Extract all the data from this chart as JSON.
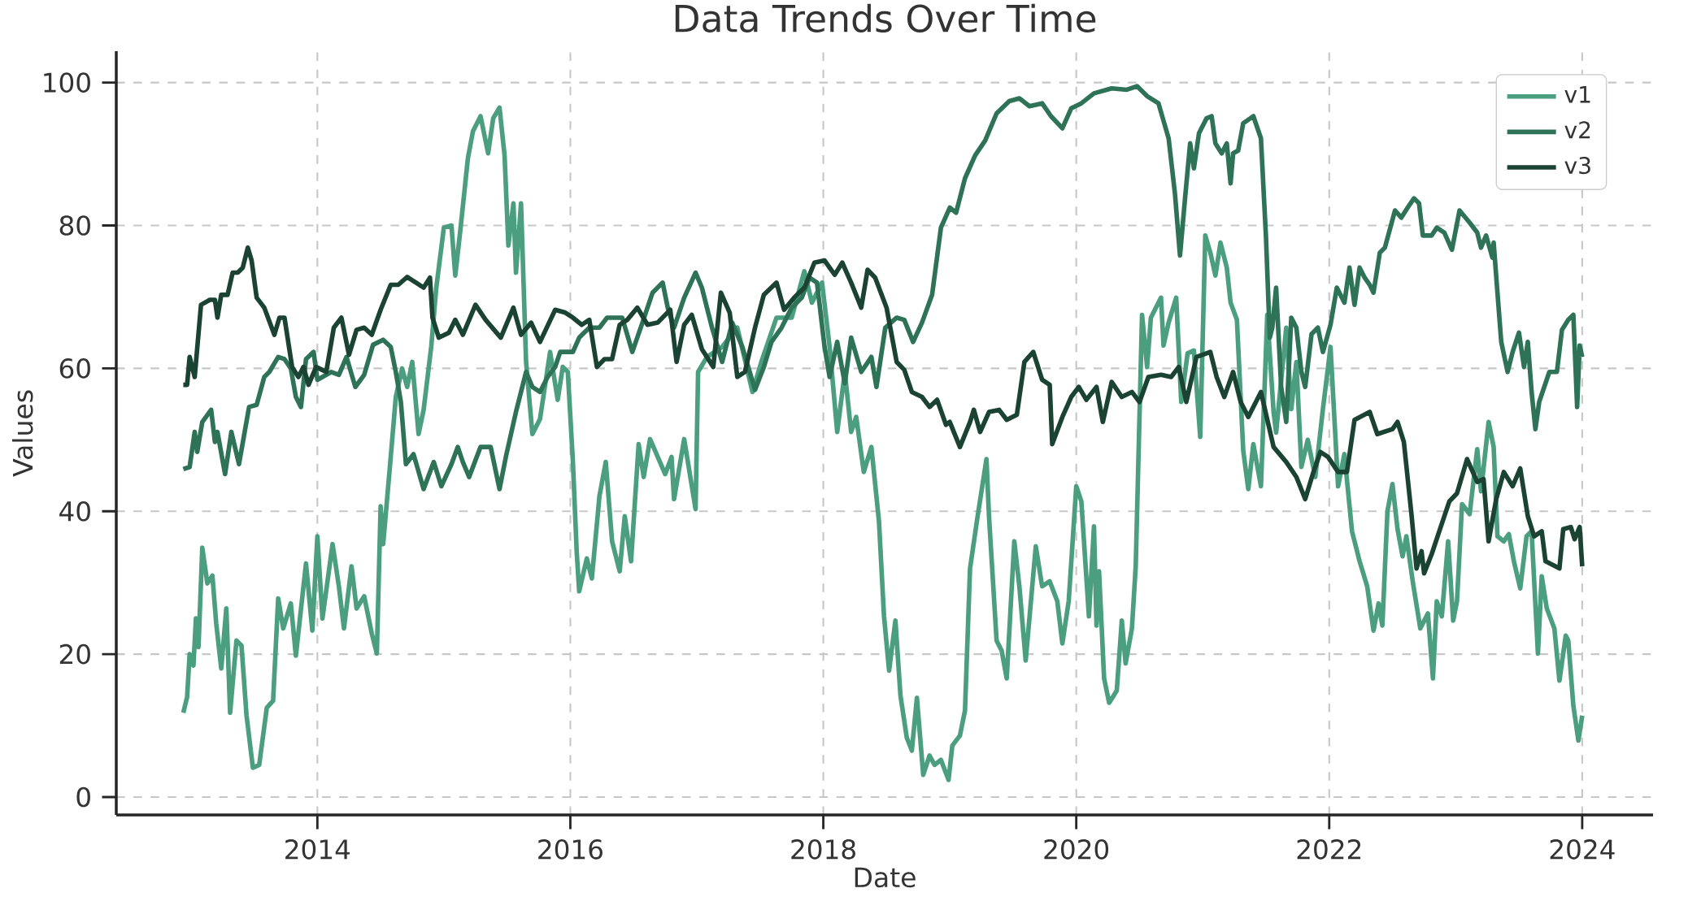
{
  "chart_data": {
    "type": "line",
    "title": "Data Trends Over Time",
    "xlabel": "Date",
    "ylabel": "Values",
    "xlim": [
      2012.41,
      2024.56
    ],
    "ylim": [
      -2.5,
      104.4
    ],
    "xticks": [
      2014,
      2016,
      2018,
      2020,
      2022,
      2024
    ],
    "yticks": [
      0,
      20,
      40,
      60,
      80,
      100
    ],
    "grid": true,
    "legend": "top right",
    "series": [
      {
        "name": "v1",
        "color": "#4c9e80",
        "x": [
          2012.94,
          2012.97,
          2012.99,
          2013.02,
          2013.04,
          2013.06,
          2013.09,
          2013.13,
          2013.17,
          2013.2,
          2013.24,
          2013.28,
          2013.31,
          2013.36,
          2013.4,
          2013.44,
          2013.49,
          2013.54,
          2013.6,
          2013.65,
          2013.69,
          2013.73,
          2013.79,
          2013.83,
          2013.91,
          2013.96,
          2014.0,
          2014.04,
          2014.12,
          2014.17,
          2014.21,
          2014.27,
          2014.31,
          2014.37,
          2014.43,
          2014.47,
          2014.5,
          2014.52,
          2014.58,
          2014.62,
          2014.67,
          2014.71,
          2014.75,
          2014.8,
          2014.84,
          2014.9,
          2014.94,
          2015.0,
          2015.06,
          2015.09,
          2015.13,
          2015.19,
          2015.23,
          2015.29,
          2015.35,
          2015.39,
          2015.44,
          2015.48,
          2015.51,
          2015.55,
          2015.57,
          2015.61,
          2015.65,
          2015.7,
          2015.76,
          2015.84,
          2015.9,
          2015.94,
          2015.98,
          2016.02,
          2016.05,
          2016.07,
          2016.13,
          2016.17,
          2016.23,
          2016.28,
          2016.33,
          2016.39,
          2016.43,
          2016.48,
          2016.54,
          2016.58,
          2016.63,
          2016.75,
          2016.8,
          2016.82,
          2016.9,
          2016.99,
          2017.01,
          2017.08,
          2017.2,
          2017.32,
          2017.44,
          2017.51,
          2017.63,
          2017.75,
          2017.85,
          2017.91,
          2017.99,
          2018.05,
          2018.11,
          2018.17,
          2018.22,
          2018.26,
          2018.32,
          2018.38,
          2018.44,
          2018.48,
          2018.52,
          2018.57,
          2018.61,
          2018.66,
          2018.7,
          2018.74,
          2018.79,
          2018.84,
          2018.88,
          2018.93,
          2018.99,
          2019.02,
          2019.08,
          2019.12,
          2019.16,
          2019.22,
          2019.29,
          2019.31,
          2019.37,
          2019.41,
          2019.45,
          2019.51,
          2019.55,
          2019.6,
          2019.68,
          2019.73,
          2019.79,
          2019.85,
          2019.89,
          2019.94,
          2020.0,
          2020.04,
          2020.1,
          2020.14,
          2020.16,
          2020.18,
          2020.22,
          2020.26,
          2020.32,
          2020.36,
          2020.39,
          2020.44,
          2020.47,
          2020.52,
          2020.56,
          2020.59,
          2020.67,
          2020.69,
          2020.73,
          2020.79,
          2020.83,
          2020.88,
          2020.93,
          2020.98,
          2021.02,
          2021.06,
          2021.1,
          2021.14,
          2021.19,
          2021.22,
          2021.27,
          2021.32,
          2021.36,
          2021.4,
          2021.46,
          2021.51,
          2021.56,
          2021.58,
          2021.66,
          2021.7,
          2021.74,
          2021.78,
          2021.83,
          2021.89,
          2021.95,
          2022.01,
          2022.07,
          2022.12,
          2022.18,
          2022.24,
          2022.3,
          2022.35,
          2022.39,
          2022.42,
          2022.46,
          2022.5,
          2022.54,
          2022.58,
          2022.61,
          2022.66,
          2022.72,
          2022.78,
          2022.82,
          2022.85,
          2022.89,
          2022.94,
          2022.98,
          2023.01,
          2023.05,
          2023.11,
          2023.17,
          2023.2,
          2023.26,
          2023.3,
          2023.33,
          2023.38,
          2023.42,
          2023.46,
          2023.51,
          2023.56,
          2023.6,
          2023.65,
          2023.68,
          2023.72,
          2023.78,
          2023.82,
          2023.87,
          2023.89,
          2023.93,
          2023.97,
          2024.0
        ],
        "values": [
          11.8,
          14,
          20,
          18.4,
          25,
          21,
          34.9,
          29.9,
          31,
          24.3,
          18,
          26.4,
          11.8,
          21.9,
          21.2,
          11.4,
          4.1,
          4.5,
          12.5,
          13.5,
          27.8,
          23.6,
          27.1,
          19.8,
          32.7,
          23.3,
          36.5,
          25,
          35.4,
          29.5,
          23.6,
          32.3,
          26.4,
          28.1,
          22.9,
          20.1,
          40.7,
          35.4,
          47.6,
          56,
          60,
          57.4,
          60.9,
          50.8,
          54.2,
          63,
          71.3,
          79.7,
          80,
          73,
          79.3,
          89.4,
          93.2,
          95.3,
          90.1,
          95,
          96.5,
          89.8,
          77.2,
          83.1,
          73.4,
          83.1,
          60.9,
          50.8,
          52.9,
          62.3,
          55.6,
          60.2,
          59.5,
          47,
          34.4,
          28.8,
          33.4,
          30.6,
          42.1,
          46.9,
          35.8,
          31.6,
          39.3,
          33,
          49.4,
          44.8,
          50.1,
          45.2,
          47.6,
          41.7,
          50.1,
          40.3,
          59.5,
          61.6,
          63,
          65.7,
          56.7,
          60.9,
          67.1,
          67.1,
          73.6,
          69.2,
          72,
          63,
          51.1,
          59.5,
          51.1,
          53.2,
          45.5,
          49,
          38.6,
          25.3,
          17.7,
          24.7,
          14.2,
          8.3,
          6.5,
          13.9,
          3.1,
          5.8,
          4.5,
          5.2,
          2.4,
          7.2,
          8.6,
          12.1,
          32,
          39.3,
          47.3,
          39.3,
          21.9,
          20.5,
          16.6,
          35.8,
          29.5,
          19.1,
          35.1,
          29.5,
          30.2,
          27.4,
          21.5,
          27.4,
          43.5,
          41.4,
          25.3,
          37.9,
          24,
          31.6,
          16.6,
          13.2,
          14.9,
          24.7,
          18.7,
          23.6,
          32.3,
          67.5,
          60.2,
          67.1,
          69.9,
          63.2,
          66.4,
          69.9,
          55.3,
          62.1,
          62.5,
          50.4,
          78.6,
          76.2,
          73,
          77.6,
          74.1,
          69.2,
          66.8,
          48.5,
          43.1,
          49.4,
          43.5,
          67.5,
          53.9,
          51,
          65.7,
          54.3,
          60.9,
          46.2,
          50,
          44.8,
          54.3,
          63,
          43.5,
          48,
          37.2,
          33,
          29.5,
          23.3,
          27.1,
          24,
          40,
          43.8,
          37.5,
          33.7,
          36.5,
          30.2,
          23.6,
          25.7,
          16.6,
          27.4,
          25.3,
          35.8,
          24.7,
          27.4,
          41,
          39.6,
          48.7,
          42.8,
          52.5,
          49,
          36.5,
          35.8,
          36.8,
          33,
          29.2,
          36.5,
          37.2,
          20.1,
          30.9,
          26.4,
          23.6,
          16.3,
          22.6,
          21.9,
          12.8,
          7.9,
          11.4
        ]
      },
      {
        "name": "v2",
        "color": "#2e7358",
        "x": [
          2012.94,
          2012.99,
          2013.03,
          2013.05,
          2013.09,
          2013.16,
          2013.19,
          2013.21,
          2013.27,
          2013.32,
          2013.38,
          2013.46,
          2013.52,
          2013.58,
          2013.62,
          2013.69,
          2013.74,
          2013.79,
          2013.83,
          2013.87,
          2013.91,
          2013.97,
          2014.0,
          2014.11,
          2014.17,
          2014.23,
          2014.3,
          2014.37,
          2014.44,
          2014.52,
          2014.58,
          2014.62,
          2014.66,
          2014.7,
          2014.76,
          2014.84,
          2014.92,
          2014.98,
          2015.06,
          2015.11,
          2015.15,
          2015.2,
          2015.29,
          2015.37,
          2015.44,
          2015.49,
          2015.57,
          2015.65,
          2015.7,
          2015.76,
          2015.82,
          2015.88,
          2015.92,
          2016.02,
          2016.07,
          2016.15,
          2016.23,
          2016.29,
          2016.41,
          2016.49,
          2016.57,
          2016.65,
          2016.73,
          2016.77,
          2016.82,
          2016.9,
          2016.99,
          2017.04,
          2017.12,
          2017.2,
          2017.28,
          2017.36,
          2017.46,
          2017.53,
          2017.59,
          2017.67,
          2017.75,
          2017.83,
          2017.89,
          2017.95,
          2018.01,
          2018.05,
          2018.11,
          2018.17,
          2018.22,
          2018.3,
          2018.38,
          2018.42,
          2018.49,
          2018.58,
          2018.64,
          2018.71,
          2018.78,
          2018.86,
          2018.93,
          2019.0,
          2019.05,
          2019.12,
          2019.2,
          2019.28,
          2019.37,
          2019.47,
          2019.55,
          2019.63,
          2019.73,
          2019.8,
          2019.89,
          2019.96,
          2020.04,
          2020.14,
          2020.28,
          2020.4,
          2020.48,
          2020.56,
          2020.65,
          2020.73,
          2020.78,
          2020.82,
          2020.86,
          2020.9,
          2020.93,
          2020.97,
          2021.03,
          2021.07,
          2021.1,
          2021.15,
          2021.19,
          2021.22,
          2021.24,
          2021.28,
          2021.32,
          2021.4,
          2021.46,
          2021.5,
          2021.53,
          2021.55,
          2021.58,
          2021.62,
          2021.66,
          2021.7,
          2021.74,
          2021.78,
          2021.81,
          2021.86,
          2021.91,
          2021.95,
          2022.01,
          2022.06,
          2022.12,
          2022.16,
          2022.2,
          2022.24,
          2022.28,
          2022.32,
          2022.35,
          2022.4,
          2022.44,
          2022.52,
          2022.57,
          2022.62,
          2022.67,
          2022.71,
          2022.74,
          2022.81,
          2022.85,
          2022.91,
          2022.97,
          2023.03,
          2023.11,
          2023.17,
          2023.2,
          2023.24,
          2023.29,
          2023.3,
          2023.33,
          2023.36,
          2023.41,
          2023.45,
          2023.5,
          2023.54,
          2023.57,
          2023.6,
          2023.63,
          2023.66,
          2023.7,
          2023.74,
          2023.8,
          2023.84,
          2023.89,
          2023.93,
          2023.96,
          2023.98,
          2024.0
        ],
        "values": [
          45.9,
          46.2,
          51.1,
          48.3,
          52.5,
          54.2,
          49.7,
          51.1,
          45.2,
          51.1,
          46.6,
          54.6,
          54.9,
          58.8,
          59.5,
          61.6,
          61.3,
          60,
          56,
          54.6,
          61.3,
          62.3,
          58.4,
          59.5,
          59.1,
          61.6,
          57.4,
          59.1,
          63.3,
          64,
          63,
          59.5,
          55.3,
          46.6,
          48,
          43.1,
          46.9,
          43.5,
          46.6,
          49,
          46.9,
          44.8,
          49,
          49,
          43.1,
          47.6,
          53.9,
          59.5,
          57.4,
          56.7,
          58.8,
          60.2,
          62.3,
          62.3,
          64.3,
          65.7,
          65.7,
          67.1,
          67.1,
          62.3,
          66.4,
          70.6,
          72,
          68.5,
          65.7,
          69.9,
          73.4,
          71.3,
          65.7,
          60.9,
          66.4,
          63,
          57,
          60.2,
          63.7,
          65.7,
          68.5,
          69.9,
          72.7,
          72,
          63,
          58.8,
          63.7,
          57.9,
          64.3,
          59.5,
          61.6,
          57.4,
          65.7,
          67.1,
          66.8,
          63.7,
          66.4,
          70.3,
          79.7,
          82.5,
          81.8,
          86.6,
          89.8,
          91.9,
          95.7,
          97.4,
          97.8,
          96.7,
          97.1,
          95.3,
          93.6,
          96.4,
          97.1,
          98.5,
          99.2,
          99,
          99.5,
          98.1,
          97.1,
          92.2,
          84.5,
          75.8,
          83.8,
          91.5,
          88,
          92.9,
          95,
          95.3,
          91.5,
          90.1,
          91.5,
          85.9,
          90.1,
          90.5,
          94.3,
          95.3,
          92.2,
          78.3,
          64.3,
          65.7,
          71.3,
          57.4,
          52.5,
          67.1,
          65.7,
          59.5,
          57.4,
          64.8,
          65.7,
          62.3,
          66.1,
          71.3,
          69.2,
          74.1,
          68.9,
          74.1,
          72.7,
          71.7,
          70.6,
          76.2,
          76.9,
          82.1,
          81.1,
          82.5,
          83.8,
          83.1,
          78.6,
          78.6,
          79.7,
          79,
          76.6,
          82.1,
          80.4,
          79,
          76.9,
          78.6,
          75.5,
          77.6,
          70.6,
          63.7,
          59.5,
          62.3,
          65,
          60.2,
          63.7,
          56.7,
          51.5,
          55.3,
          57.4,
          59.5,
          59.5,
          65.4,
          66.8,
          67.5,
          54.6,
          63.2,
          61.6
        ]
      },
      {
        "name": "v3",
        "color": "#1b4334",
        "x": [
          2012.94,
          2012.97,
          2012.99,
          2013.03,
          2013.08,
          2013.15,
          2013.19,
          2013.21,
          2013.24,
          2013.29,
          2013.33,
          2013.37,
          2013.41,
          2013.45,
          2013.48,
          2013.52,
          2013.58,
          2013.66,
          2013.7,
          2013.74,
          2013.8,
          2013.85,
          2013.89,
          2013.93,
          2013.99,
          2014.07,
          2014.13,
          2014.19,
          2014.25,
          2014.31,
          2014.37,
          2014.43,
          2014.5,
          2014.58,
          2014.64,
          2014.71,
          2014.78,
          2014.84,
          2014.89,
          2014.91,
          2014.96,
          2015.04,
          2015.09,
          2015.15,
          2015.25,
          2015.33,
          2015.45,
          2015.55,
          2015.61,
          2015.69,
          2015.76,
          2015.88,
          2015.96,
          2016.02,
          2016.09,
          2016.15,
          2016.21,
          2016.27,
          2016.33,
          2016.39,
          2016.45,
          2016.53,
          2016.61,
          2016.69,
          2016.79,
          2016.84,
          2016.9,
          2016.96,
          2017.04,
          2017.13,
          2017.19,
          2017.26,
          2017.32,
          2017.38,
          2017.46,
          2017.53,
          2017.63,
          2017.69,
          2017.77,
          2017.85,
          2017.93,
          2018.01,
          2018.09,
          2018.15,
          2018.22,
          2018.3,
          2018.35,
          2018.41,
          2018.5,
          2018.58,
          2018.64,
          2018.7,
          2018.78,
          2018.84,
          2018.9,
          2018.97,
          2019.0,
          2019.08,
          2019.16,
          2019.19,
          2019.24,
          2019.31,
          2019.39,
          2019.45,
          2019.53,
          2019.59,
          2019.66,
          2019.73,
          2019.79,
          2019.81,
          2019.89,
          2019.96,
          2020.02,
          2020.08,
          2020.16,
          2020.21,
          2020.28,
          2020.36,
          2020.44,
          2020.5,
          2020.57,
          2020.67,
          2020.75,
          2020.81,
          2020.87,
          2020.95,
          2021.06,
          2021.11,
          2021.17,
          2021.24,
          2021.3,
          2021.36,
          2021.46,
          2021.56,
          2021.66,
          2021.74,
          2021.81,
          2021.87,
          2021.93,
          2021.99,
          2022.07,
          2022.14,
          2022.2,
          2022.32,
          2022.38,
          2022.5,
          2022.54,
          2022.59,
          2022.65,
          2022.69,
          2022.73,
          2022.75,
          2022.81,
          2022.87,
          2022.95,
          2023.01,
          2023.09,
          2023.17,
          2023.22,
          2023.26,
          2023.32,
          2023.38,
          2023.45,
          2023.51,
          2023.57,
          2023.62,
          2023.68,
          2023.71,
          2023.82,
          2023.85,
          2023.91,
          2023.94,
          2023.98,
          2024.0
        ],
        "values": [
          57.7,
          57.7,
          61.6,
          58.8,
          68.9,
          69.6,
          69.6,
          67.1,
          70.3,
          70.3,
          73.4,
          73.4,
          74.1,
          76.9,
          75.1,
          69.9,
          68.5,
          64.7,
          67.1,
          67.1,
          60.2,
          58.8,
          60.2,
          57.7,
          60.2,
          59.5,
          65.7,
          67.1,
          61.9,
          65.4,
          65.7,
          64.7,
          68.2,
          71.7,
          71.7,
          72.8,
          72,
          71.3,
          72.7,
          67.1,
          64.3,
          65,
          66.8,
          64.7,
          68.9,
          66.8,
          64.3,
          68.5,
          64.7,
          66.4,
          63.7,
          68.2,
          67.8,
          67.1,
          66.1,
          66.8,
          60.2,
          61.3,
          61.3,
          66.1,
          66.8,
          68.5,
          66.1,
          66.4,
          68.2,
          60.9,
          66.1,
          67.5,
          62.7,
          60.2,
          70.6,
          67.8,
          58.8,
          59.5,
          65.7,
          70.3,
          72,
          68.2,
          69.9,
          71.3,
          74.8,
          75.1,
          73.1,
          74.8,
          72,
          68.5,
          73.8,
          72.7,
          68.5,
          60.9,
          59.8,
          56.7,
          56,
          54.6,
          55.6,
          52.1,
          52.5,
          49,
          52.5,
          54.2,
          51.1,
          53.9,
          54.2,
          52.8,
          53.5,
          60.9,
          62.3,
          58.4,
          57.7,
          49.4,
          53.2,
          56,
          57.4,
          55.6,
          57.4,
          52.5,
          58.1,
          56,
          56.7,
          55.3,
          58.8,
          59.1,
          58.8,
          60.2,
          55.3,
          61.6,
          62.3,
          58.8,
          56,
          59.5,
          55.3,
          53.2,
          56.7,
          49,
          46.9,
          44.8,
          41.7,
          45.2,
          48.3,
          47.6,
          45.5,
          45.5,
          52.8,
          53.9,
          50.8,
          51.5,
          52.5,
          49.7,
          39.6,
          32,
          34.4,
          31.3,
          34,
          37.2,
          41.4,
          42.5,
          47.3,
          44.1,
          44.5,
          35.8,
          41.7,
          45.5,
          43.5,
          46,
          39.3,
          36.5,
          37.2,
          33,
          32,
          37.5,
          37.8,
          36.1,
          37.8,
          32.3
        ]
      }
    ]
  }
}
